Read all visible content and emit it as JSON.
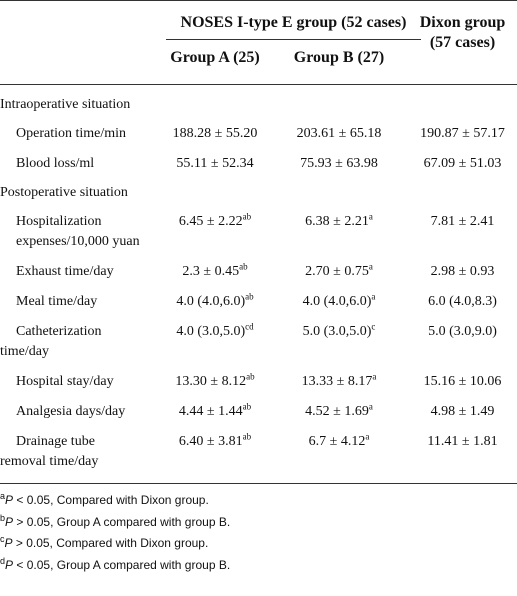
{
  "table": {
    "header": {
      "group": "NOSES I-type E group (52 cases)",
      "dixon": "Dixon group (57 cases)",
      "group_a": "Group A (25)",
      "group_b": "Group B (27)"
    },
    "rows": [
      {
        "section": "Intraoperative situation"
      },
      {
        "label": [
          "Operation time/min"
        ],
        "cells": [
          {
            "text": "188.28 ± 55.20"
          },
          {
            "text": "203.61 ± 65.18"
          },
          {
            "text": "190.87 ± 57.17"
          }
        ]
      },
      {
        "label": [
          "Blood loss/ml"
        ],
        "cells": [
          {
            "text": "55.11 ± 52.34"
          },
          {
            "text": "75.93 ± 63.98"
          },
          {
            "text": "67.09 ± 51.03"
          }
        ]
      },
      {
        "section": "Postoperative situation"
      },
      {
        "label": [
          "Hospitalization",
          "expenses/10,000 yuan"
        ],
        "cells": [
          {
            "text": "6.45 ± 2.22",
            "sup": "ab"
          },
          {
            "text": "6.38 ± 2.21",
            "sup": "a"
          },
          {
            "text": "7.81 ± 2.41"
          }
        ]
      },
      {
        "label": [
          "Exhaust time/day"
        ],
        "cells": [
          {
            "text": "2.3 ± 0.45",
            "sup": "ab"
          },
          {
            "text": "2.70 ± 0.75",
            "sup": "a"
          },
          {
            "text": "2.98 ± 0.93"
          }
        ]
      },
      {
        "label": [
          "Meal time/day"
        ],
        "cells": [
          {
            "text": "4.0 (4.0,6.0)",
            "sup": "ab"
          },
          {
            "text": "4.0 (4.0,6.0)",
            "sup": "a"
          },
          {
            "text": "6.0 (4.0,8.3)"
          }
        ]
      },
      {
        "label": [
          "Catheterization",
          "time/day"
        ],
        "cells": [
          {
            "text": "4.0 (3.0,5.0)",
            "sup": "cd"
          },
          {
            "text": "5.0 (3.0,5.0)",
            "sup": "c"
          },
          {
            "text": "5.0 (3.0,9.0)"
          }
        ]
      },
      {
        "label": [
          "Hospital stay/day"
        ],
        "cells": [
          {
            "text": "13.30 ± 8.12",
            "sup": "ab"
          },
          {
            "text": "13.33 ± 8.17",
            "sup": "a"
          },
          {
            "text": "15.16 ± 10.06"
          }
        ]
      },
      {
        "label": [
          "Analgesia days/day"
        ],
        "cells": [
          {
            "text": "4.44 ± 1.44",
            "sup": "ab"
          },
          {
            "text": "4.52 ± 1.69",
            "sup": "a"
          },
          {
            "text": "4.98 ± 1.49"
          }
        ]
      },
      {
        "label": [
          "Drainage tube",
          "removal time/day"
        ],
        "cells": [
          {
            "text": "6.40 ± 3.81",
            "sup": "ab"
          },
          {
            "text": "6.7 ± 4.12",
            "sup": "a"
          },
          {
            "text": "11.41 ± 1.81"
          }
        ]
      }
    ]
  },
  "footnotes": [
    {
      "mark": "a",
      "var": "P",
      "text": "< 0.05, Compared with Dixon group."
    },
    {
      "mark": "b",
      "var": "P",
      "text": "> 0.05, Group A compared with group B."
    },
    {
      "mark": "c",
      "var": "P",
      "text": "> 0.05, Compared with Dixon group."
    },
    {
      "mark": "d",
      "var": "P",
      "text": "< 0.05, Group A compared with group B."
    }
  ]
}
